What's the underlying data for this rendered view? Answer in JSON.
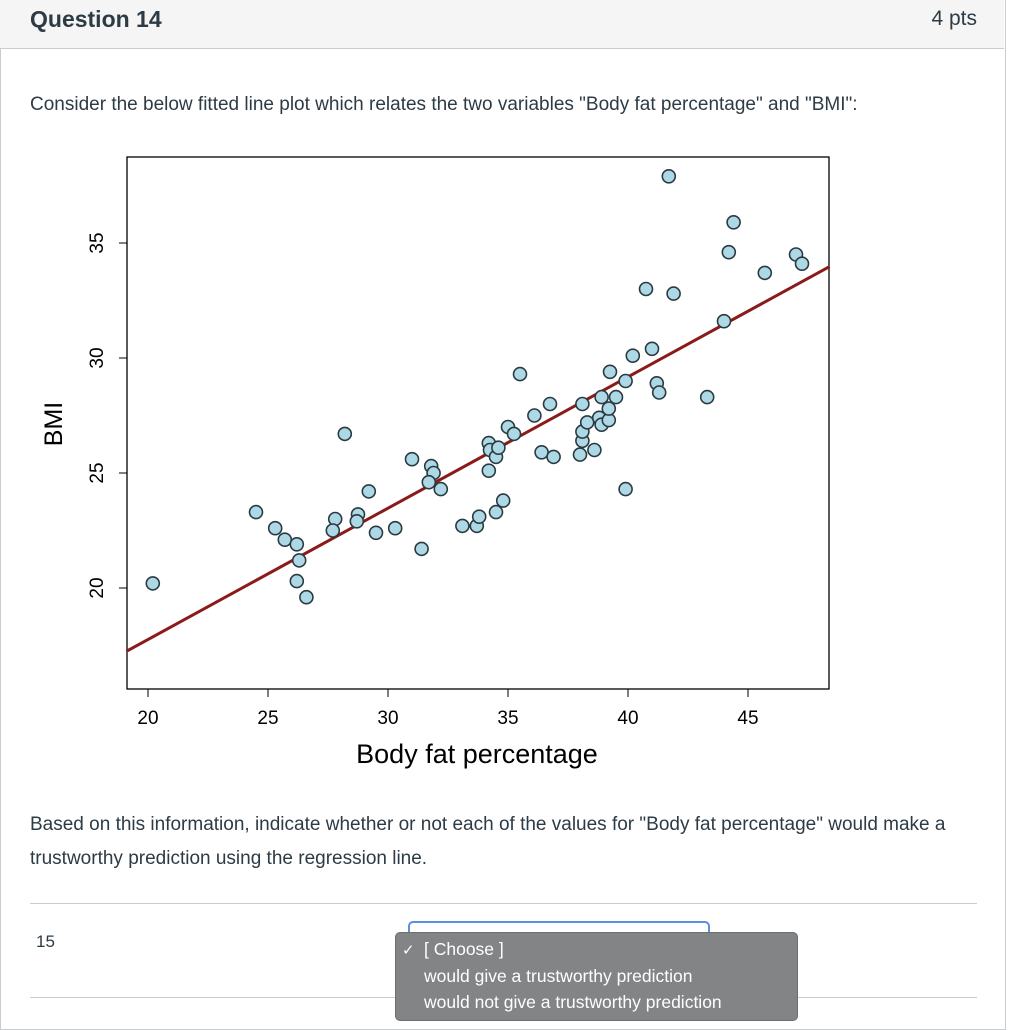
{
  "question": {
    "title": "Question 14",
    "points": "4 pts",
    "prompt": "Consider the below fitted line plot which relates the two variables \"Body fat percentage\" and \"BMI\":",
    "instruction": "Based on this information, indicate whether or not each of the values for \"Body fat percentage\" would make a trustworthy prediction using the regression line."
  },
  "rows": [
    {
      "label": "15",
      "selected": "[ Choose ]"
    }
  ],
  "dropdown": {
    "options": [
      "[ Choose ]",
      "would give a trustworthy prediction",
      "would not give a trustworthy prediction"
    ],
    "checked_index": 0,
    "check_icon": "checkmark-icon"
  },
  "colors": {
    "point_fill": "#add8e6",
    "line": "#8b1a1a",
    "menu_bg": "#838486",
    "focus": "#5b8fe0"
  },
  "chart_data": {
    "type": "scatter",
    "title": "",
    "xlabel": "Body fat percentage",
    "ylabel": "BMI",
    "xlim": [
      19.1,
      48.4
    ],
    "ylim": [
      15.6,
      38.7
    ],
    "xticks": [
      20,
      25,
      30,
      35,
      40,
      45
    ],
    "yticks": [
      20,
      25,
      30,
      35
    ],
    "grid": false,
    "fitted_line": {
      "slope": 0.571,
      "intercept": 6.34
    },
    "points": [
      [
        20.2,
        20.2
      ],
      [
        24.5,
        23.3
      ],
      [
        25.3,
        22.6
      ],
      [
        25.7,
        22.1
      ],
      [
        26.2,
        21.9
      ],
      [
        26.3,
        21.2
      ],
      [
        26.2,
        20.3
      ],
      [
        26.6,
        19.6
      ],
      [
        27.8,
        23.0
      ],
      [
        27.7,
        22.5
      ],
      [
        28.2,
        26.7
      ],
      [
        28.75,
        23.2
      ],
      [
        28.7,
        22.9
      ],
      [
        29.2,
        24.2
      ],
      [
        29.5,
        22.4
      ],
      [
        30.3,
        22.6
      ],
      [
        31.4,
        21.7
      ],
      [
        31.0,
        25.6
      ],
      [
        31.8,
        25.3
      ],
      [
        31.9,
        25.0
      ],
      [
        31.7,
        24.6
      ],
      [
        32.2,
        24.3
      ],
      [
        33.1,
        22.7
      ],
      [
        33.7,
        22.7
      ],
      [
        33.8,
        23.1
      ],
      [
        34.5,
        23.3
      ],
      [
        34.8,
        23.8
      ],
      [
        34.2,
        26.3
      ],
      [
        34.25,
        26.0
      ],
      [
        34.5,
        25.7
      ],
      [
        34.2,
        25.1
      ],
      [
        34.6,
        26.1
      ],
      [
        35.0,
        27.0
      ],
      [
        35.25,
        26.7
      ],
      [
        35.5,
        29.3
      ],
      [
        36.1,
        27.5
      ],
      [
        36.75,
        28.0
      ],
      [
        36.4,
        25.9
      ],
      [
        36.9,
        25.7
      ],
      [
        38.0,
        25.8
      ],
      [
        38.1,
        26.4
      ],
      [
        38.1,
        26.8
      ],
      [
        38.3,
        27.2
      ],
      [
        38.1,
        28.0
      ],
      [
        38.6,
        26.0
      ],
      [
        38.8,
        27.4
      ],
      [
        38.9,
        27.1
      ],
      [
        39.2,
        27.3
      ],
      [
        39.2,
        27.8
      ],
      [
        38.9,
        28.3
      ],
      [
        39.5,
        28.3
      ],
      [
        39.25,
        29.4
      ],
      [
        39.9,
        29.0
      ],
      [
        39.9,
        24.3
      ],
      [
        40.2,
        30.1
      ],
      [
        41.0,
        30.4
      ],
      [
        40.75,
        33.0
      ],
      [
        41.2,
        28.9
      ],
      [
        41.3,
        28.5
      ],
      [
        41.9,
        32.8
      ],
      [
        41.7,
        37.9
      ],
      [
        43.3,
        28.3
      ],
      [
        44.0,
        31.6
      ],
      [
        44.2,
        34.6
      ],
      [
        44.4,
        35.9
      ],
      [
        45.7,
        33.7
      ],
      [
        47.0,
        34.5
      ],
      [
        47.25,
        34.1
      ]
    ]
  }
}
